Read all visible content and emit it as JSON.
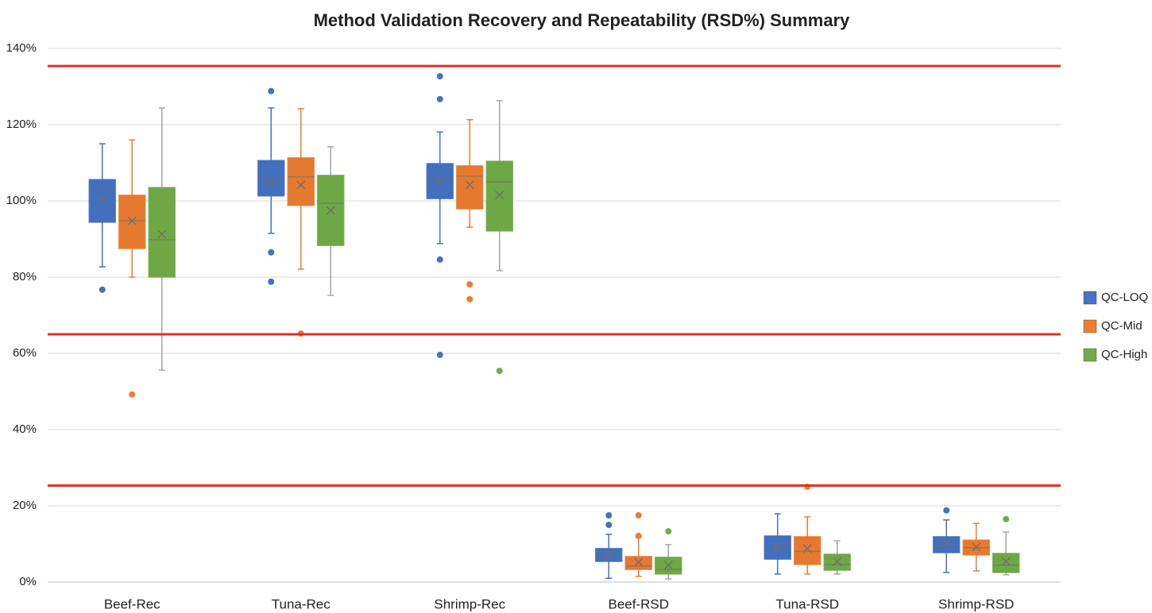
{
  "chart_data": {
    "type": "box",
    "title": "Method Validation Recovery and Repeatability (RSD%) Summary",
    "categories": [
      "Beef-Rec",
      "Tuna-Rec",
      "Shrimp-Rec",
      "Beef-RSD",
      "Tuna-RSD",
      "Shrimp-RSD"
    ],
    "ylim": [
      0,
      140
    ],
    "yticks": [
      {
        "value": 0,
        "label": "0%"
      },
      {
        "value": 20,
        "label": "20%"
      },
      {
        "value": 40,
        "label": "40%"
      },
      {
        "value": 60,
        "label": "60%"
      },
      {
        "value": 80,
        "label": "80%"
      },
      {
        "value": 100,
        "label": "100%"
      },
      {
        "value": 120,
        "label": "120%"
      },
      {
        "value": 140,
        "label": "140%"
      }
    ],
    "grid": true,
    "legend": "right",
    "reference_lines": [
      135.4,
      65,
      25.3
    ],
    "reference_color": "#e0302a",
    "series": [
      {
        "name": "QC-LOQ",
        "color": "#4472c4",
        "whisker_color": "#4472c4",
        "boxes": [
          {
            "min": 82.7,
            "q1": 94.4,
            "median": 102.7,
            "q3": 105.6,
            "max": 115,
            "mean": 100.4,
            "outliers": [
              76.7
            ]
          },
          {
            "min": 91.5,
            "q1": 101.3,
            "median": 106,
            "q3": 110.6,
            "max": 124.4,
            "mean": 105,
            "outliers": [
              128.8,
              86.5,
              78.8
            ]
          },
          {
            "min": 88.8,
            "q1": 100.6,
            "median": 105.8,
            "q3": 109.8,
            "max": 118.1,
            "mean": 105.2,
            "outliers": [
              132.7,
              126.7,
              84.6,
              59.6
            ]
          },
          {
            "min": 1,
            "q1": 5.4,
            "median": 6.9,
            "q3": 8.8,
            "max": 12.5,
            "mean": 7.3,
            "outliers": [
              17.5,
              15
            ]
          },
          {
            "min": 2.1,
            "q1": 6,
            "median": 9.2,
            "q3": 12.1,
            "max": 17.9,
            "mean": 9.2,
            "outliers": []
          },
          {
            "min": 2.5,
            "q1": 7.7,
            "median": 9.6,
            "q3": 11.9,
            "max": 16.3,
            "mean": 10.2,
            "outliers": [
              18.8
            ]
          }
        ]
      },
      {
        "name": "QC-Mid",
        "color": "#ed7d31",
        "whisker_color": "#ed7d31",
        "boxes": [
          {
            "min": 80,
            "q1": 87.5,
            "median": 94.8,
            "q3": 101.5,
            "max": 116,
            "mean": 94.8,
            "outliers": [
              49.2
            ]
          },
          {
            "min": 82.1,
            "q1": 98.8,
            "median": 106.3,
            "q3": 111.3,
            "max": 124.2,
            "mean": 104.2,
            "outliers": [
              65.2
            ]
          },
          {
            "min": 93.1,
            "q1": 97.9,
            "median": 106.5,
            "q3": 109.2,
            "max": 121.3,
            "mean": 104.2,
            "outliers": [
              78.1,
              74.2
            ]
          },
          {
            "min": 1.5,
            "q1": 3.3,
            "median": 4.2,
            "q3": 6.7,
            "max": 11.7,
            "mean": 5.2,
            "outliers": [
              17.5,
              12.1
            ]
          },
          {
            "min": 2.1,
            "q1": 4.6,
            "median": 8.1,
            "q3": 11.9,
            "max": 17.1,
            "mean": 8.8,
            "outliers": [
              25
            ]
          },
          {
            "min": 2.9,
            "q1": 7.1,
            "median": 9,
            "q3": 11,
            "max": 15.4,
            "mean": 9.2,
            "outliers": []
          }
        ]
      },
      {
        "name": "QC-High",
        "color": "#70ad47",
        "whisker_color": "#a5a5a5",
        "boxes": [
          {
            "min": 55.6,
            "q1": 80,
            "median": 89.8,
            "q3": 103.5,
            "max": 124.4,
            "mean": 91.3,
            "outliers": []
          },
          {
            "min": 75.2,
            "q1": 88.3,
            "median": 99.4,
            "q3": 106.7,
            "max": 114.2,
            "mean": 97.5,
            "outliers": []
          },
          {
            "min": 81.7,
            "q1": 92.1,
            "median": 105,
            "q3": 110.4,
            "max": 126.3,
            "mean": 101.5,
            "outliers": [
              55.4
            ]
          },
          {
            "min": 0.8,
            "q1": 2.1,
            "median": 3.3,
            "q3": 6.5,
            "max": 9.8,
            "mean": 4.4,
            "outliers": [
              13.3
            ]
          },
          {
            "min": 2.1,
            "q1": 3.1,
            "median": 4.6,
            "q3": 7.3,
            "max": 10.8,
            "mean": 5.4,
            "outliers": []
          },
          {
            "min": 1.9,
            "q1": 2.5,
            "median": 4.4,
            "q3": 7.5,
            "max": 13.1,
            "mean": 5.4,
            "outliers": [
              16.5
            ]
          }
        ]
      }
    ]
  }
}
